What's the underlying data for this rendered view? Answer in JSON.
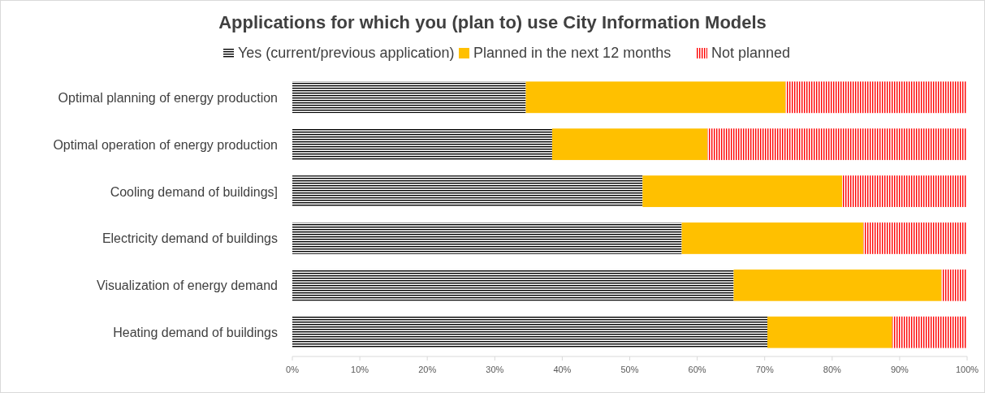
{
  "chart_data": {
    "type": "bar",
    "orientation": "horizontal",
    "stacked": true,
    "title": "Applications for which you (plan to) use City Information Models",
    "categories": [
      "Optimal planning of energy production",
      "Optimal operation of  energy production",
      "Cooling demand of buildings]",
      "Electricity demand of buildings",
      "Visualization of energy demand",
      "Heating demand of buildings"
    ],
    "series": [
      {
        "name": "Yes (current/previous application)",
        "color": "#000000",
        "values": [
          34.6,
          38.5,
          51.9,
          57.7,
          65.4,
          70.4
        ]
      },
      {
        "name": "Planned in the next 12 months",
        "color": "#ffc000",
        "values": [
          38.5,
          23.0,
          29.6,
          26.9,
          30.8,
          18.5
        ]
      },
      {
        "name": "Not planned",
        "color": "#ff0000",
        "values": [
          26.9,
          38.5,
          18.5,
          15.4,
          3.8,
          11.1
        ]
      }
    ],
    "xlim": [
      0,
      100
    ],
    "xticks": [
      {
        "value": 0,
        "label": "0%"
      },
      {
        "value": 10,
        "label": "10%"
      },
      {
        "value": 20,
        "label": "20%"
      },
      {
        "value": 30,
        "label": "30%"
      },
      {
        "value": 40,
        "label": "40%"
      },
      {
        "value": 50,
        "label": "50%"
      },
      {
        "value": 60,
        "label": "60%"
      },
      {
        "value": 70,
        "label": "70%"
      },
      {
        "value": 80,
        "label": "80%"
      },
      {
        "value": 90,
        "label": "90%"
      },
      {
        "value": 100,
        "label": "100%"
      }
    ],
    "grid": false,
    "legend": "top"
  }
}
